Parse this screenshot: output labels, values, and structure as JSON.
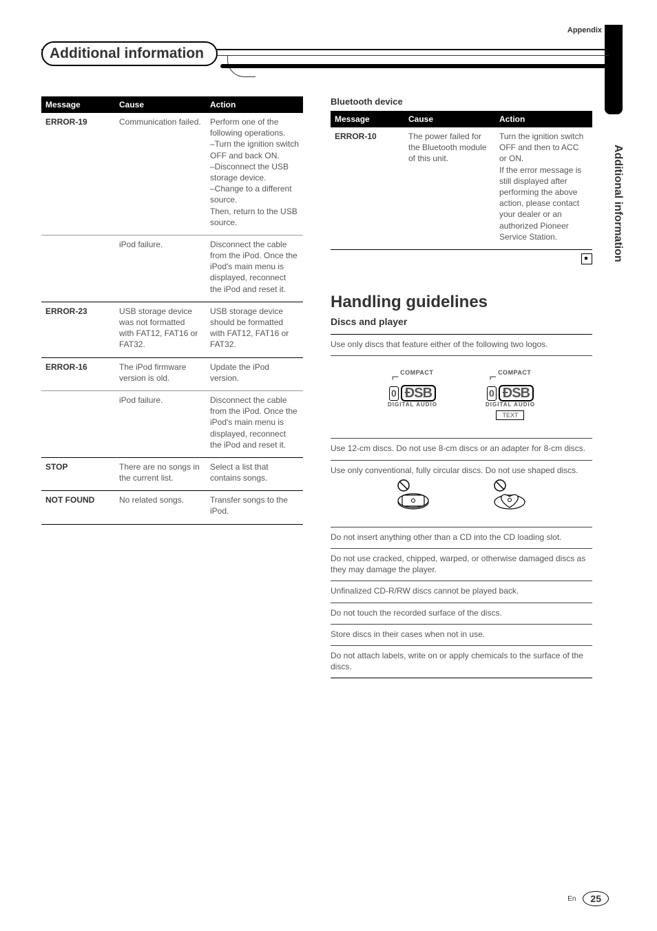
{
  "topLabel": "Appendix",
  "sectionTitle": "Additional information",
  "vText": "Additional information",
  "leftTable": {
    "headers": [
      "Message",
      "Cause",
      "Action"
    ],
    "groups": [
      {
        "message": "ERROR-19",
        "rows": [
          {
            "cause": "Communication failed.",
            "action": "Perform one of the following operations.\n–Turn the ignition switch OFF and back ON.\n–Disconnect the USB storage device.\n–Change to a different source.\nThen, return to the USB source."
          },
          {
            "cause": "iPod failure.",
            "action": "Disconnect the cable from the iPod. Once the iPod's main menu is displayed, reconnect the iPod and reset it."
          }
        ]
      },
      {
        "message": "ERROR-23",
        "rows": [
          {
            "cause": "USB storage device was not formatted with FAT12, FAT16 or FAT32.",
            "action": "USB storage device should be formatted with FAT12, FAT16 or FAT32."
          }
        ]
      },
      {
        "message": "ERROR-16",
        "rows": [
          {
            "cause": "The iPod firmware version is old.",
            "action": "Update the iPod version."
          },
          {
            "cause": "iPod failure.",
            "action": "Disconnect the cable from the iPod. Once the iPod's main menu is displayed, reconnect the iPod and reset it."
          }
        ]
      },
      {
        "message": "STOP",
        "rows": [
          {
            "cause": "There are no songs in the current list.",
            "action": "Select a list that contains songs."
          }
        ]
      },
      {
        "message": "NOT FOUND",
        "rows": [
          {
            "cause": "No related songs.",
            "action": "Transfer songs to the iPod."
          }
        ]
      }
    ]
  },
  "btHeading": "Bluetooth device",
  "rightTable": {
    "headers": [
      "Message",
      "Cause",
      "Action"
    ],
    "groups": [
      {
        "message": "ERROR-10",
        "rows": [
          {
            "cause": "The power failed for the Bluetooth module of this unit.",
            "action": "Turn the ignition switch OFF and then to ACC or ON.\nIf the error message is still displayed after performing the above action, please contact your dealer or an authorized Pioneer Service Station."
          }
        ]
      }
    ]
  },
  "guidelines": {
    "heading": "Handling guidelines",
    "subheading": "Discs and player",
    "rows": [
      "Use only discs that feature either of the following two logos.",
      "LOGOS",
      "Use 12-cm discs. Do not use 8-cm discs or an adapter for 8-cm discs.",
      "Use only conventional, fully circular discs. Do not use shaped discs.",
      "SHAPES",
      "Do not insert anything other than a CD into the CD loading slot.",
      "Do not use cracked, chipped, warped, or otherwise damaged discs as they may damage the player.",
      "Unfinalized CD-R/RW discs cannot be played back.",
      "Do not touch the recorded surface of the discs.",
      "Store discs in their cases when not in use.",
      "Do not attach labels, write on or apply chemicals to the surface of the discs."
    ]
  },
  "footer": {
    "lang": "En",
    "page": "25"
  },
  "colors": {
    "headerBg": "#000000",
    "headerFg": "#ffffff",
    "bodyText": "#555555",
    "ruleThin": "#666666",
    "ruleThick": "#000000"
  }
}
